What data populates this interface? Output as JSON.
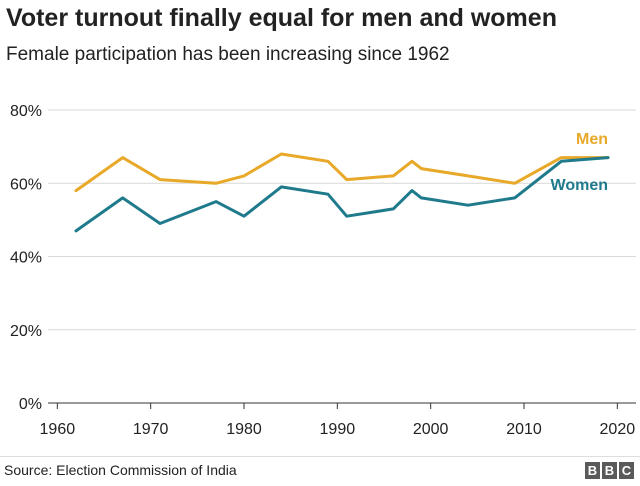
{
  "title": "Voter turnout finally equal for men and women",
  "subtitle": "Female participation has been increasing since 1962",
  "source": "Source: Election Commission of India",
  "logo_letters": [
    "B",
    "B",
    "C"
  ],
  "colors": {
    "men": "#e8a828",
    "women": "#1f7a8c",
    "grid": "#d9d9d9",
    "axis": "#333333"
  },
  "chart_data": {
    "type": "line",
    "title": "Voter turnout finally equal for men and women",
    "subtitle": "Female participation has been increasing since 1962",
    "xlim": [
      1959,
      2022
    ],
    "ylim": [
      0,
      80
    ],
    "x_ticks": [
      1960,
      1970,
      1980,
      1990,
      2000,
      2010,
      2020
    ],
    "y_ticks": [
      0,
      20,
      40,
      60,
      80
    ],
    "y_tick_suffix": "%",
    "grid": "horizontal",
    "legend": "direct labels at line ends, top-right",
    "x": [
      1962,
      1967,
      1971,
      1977,
      1980,
      1984,
      1989,
      1991,
      1996,
      1998,
      1999,
      2004,
      2009,
      2014,
      2019
    ],
    "series": [
      {
        "name": "Men",
        "color": "#e8a828",
        "values": [
          58,
          67,
          61,
          60,
          62,
          68,
          66,
          61,
          62,
          66,
          64,
          62,
          60,
          67,
          67
        ]
      },
      {
        "name": "Women",
        "color": "#1f7a8c",
        "values": [
          47,
          56,
          49,
          55,
          51,
          59,
          57,
          51,
          53,
          58,
          56,
          54,
          56,
          66,
          67
        ]
      }
    ]
  }
}
